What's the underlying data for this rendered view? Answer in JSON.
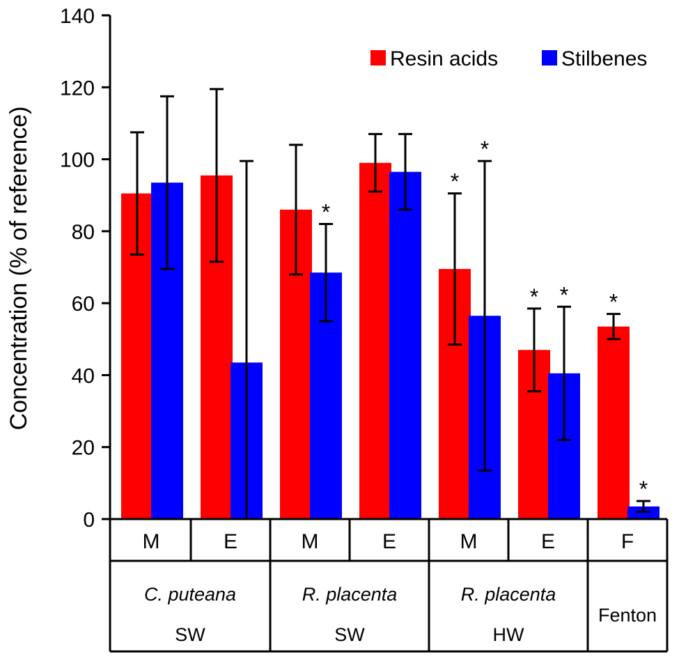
{
  "chart_data": {
    "type": "bar",
    "ylabel": "Concentration (% of reference)",
    "ylim": [
      0,
      140
    ],
    "yticks": [
      0,
      20,
      40,
      60,
      80,
      100,
      120,
      140
    ],
    "categories": [
      "M",
      "E",
      "M",
      "E",
      "M",
      "E",
      "F"
    ],
    "groups": [
      {
        "label": "C. puteana",
        "italic": true,
        "sub": "SW",
        "span": 2
      },
      {
        "label": "R. placenta",
        "italic": true,
        "sub": "SW",
        "span": 2
      },
      {
        "label": "R. placenta",
        "italic": true,
        "sub": "HW",
        "span": 2
      },
      {
        "label": "Fenton",
        "italic": false,
        "sub": "",
        "span": 1
      }
    ],
    "series": [
      {
        "name": "Resin acids",
        "color": "#ff0000",
        "values": [
          90.5,
          95.5,
          86,
          99,
          69.5,
          47,
          53.5
        ],
        "errors": [
          17,
          24,
          18,
          8,
          21,
          11.5,
          3.5
        ],
        "significant": [
          false,
          false,
          false,
          false,
          true,
          true,
          true
        ]
      },
      {
        "name": "Stilbenes",
        "color": "#0000ff",
        "values": [
          93.5,
          43.5,
          68.5,
          96.5,
          56.5,
          40.5,
          3.5
        ],
        "errors": [
          24,
          56,
          13.5,
          10.5,
          43,
          18.5,
          1.5
        ],
        "significant": [
          false,
          false,
          true,
          false,
          true,
          true,
          true
        ]
      }
    ],
    "significance_marker": "*"
  }
}
